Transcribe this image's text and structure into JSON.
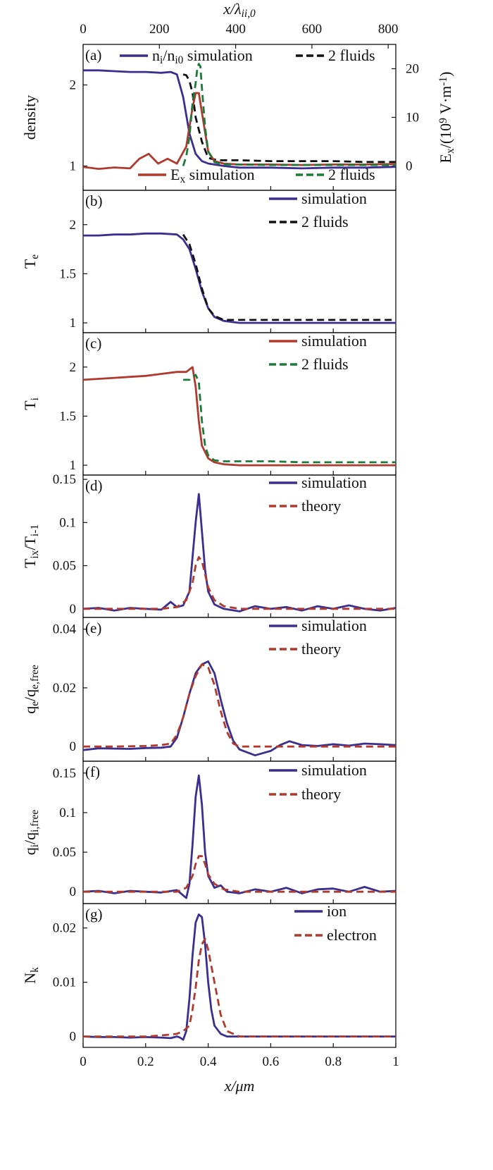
{
  "figure": {
    "top_axis_label": "x/λ_{ii,0}",
    "bottom_axis_label": "x/μm",
    "top_ticks": [
      "0",
      "200",
      "400",
      "600",
      "800"
    ],
    "bottom_ticks": [
      "0",
      "0.2",
      "0.4",
      "0.6",
      "0.8",
      "1"
    ]
  },
  "chart_data": [
    {
      "type": "line",
      "tag": "(a)",
      "ylabel": "density",
      "y2label": "E_x/(10^9 V·m^-1)",
      "ylim": [
        0.7,
        2.5
      ],
      "yticks": [
        1,
        2
      ],
      "y2lim": [
        -5,
        25
      ],
      "y2ticks": [
        0,
        10,
        20
      ],
      "xlim": [
        0,
        1
      ],
      "top_xlim": [
        0,
        820
      ],
      "legend": [
        {
          "label": "n_i/n_i0 simulation",
          "color": "#3a2f8f",
          "dash": false,
          "placement": "top-left"
        },
        {
          "label": "2 fluids",
          "color": "#111111",
          "dash": true,
          "placement": "top-right"
        },
        {
          "label": "E_x simulation",
          "color": "#b03a2e",
          "dash": false,
          "placement": "bottom-center"
        },
        {
          "label": "2 fluids",
          "color": "#1e7a3a",
          "dash": true,
          "placement": "bottom-right"
        }
      ],
      "series": [
        {
          "name": "n_i/n_i0 simulation",
          "axis": "left",
          "color": "#3a2f8f",
          "dash": false,
          "x": [
            0,
            0.05,
            0.1,
            0.15,
            0.2,
            0.25,
            0.28,
            0.3,
            0.32,
            0.34,
            0.36,
            0.38,
            0.4,
            0.45,
            0.5,
            0.6,
            0.7,
            0.8,
            0.9,
            1.0
          ],
          "y": [
            2.18,
            2.18,
            2.17,
            2.16,
            2.16,
            2.15,
            2.16,
            2.13,
            1.85,
            1.4,
            1.15,
            1.06,
            1.03,
            1.0,
            0.98,
            0.98,
            0.97,
            0.98,
            0.98,
            0.99
          ]
        },
        {
          "name": "2 fluids",
          "axis": "left",
          "color": "#111111",
          "dash": true,
          "x": [
            0.32,
            0.33,
            0.34,
            0.35,
            0.36,
            0.38,
            0.4,
            0.43,
            0.45,
            0.5,
            0.6,
            0.7,
            0.8,
            0.9,
            1.0
          ],
          "y": [
            2.13,
            2.12,
            2.05,
            1.9,
            1.6,
            1.3,
            1.1,
            1.07,
            1.07,
            1.07,
            1.06,
            1.06,
            1.06,
            1.05,
            1.05
          ]
        },
        {
          "name": "E_x simulation",
          "axis": "right",
          "color": "#b03a2e",
          "dash": false,
          "x": [
            0,
            0.05,
            0.1,
            0.15,
            0.18,
            0.21,
            0.24,
            0.27,
            0.3,
            0.33,
            0.35,
            0.36,
            0.37,
            0.38,
            0.4,
            0.42,
            0.45,
            0.5,
            0.6,
            0.7,
            0.8,
            0.9,
            1.0
          ],
          "y": [
            -0.2,
            -0.6,
            -0.3,
            -0.5,
            1.5,
            2.5,
            0.5,
            1.5,
            0.5,
            4,
            12,
            15,
            15,
            11,
            3,
            1,
            0.5,
            0.3,
            0.3,
            0.2,
            0.3,
            0.3,
            0.4
          ]
        },
        {
          "name": "2 fluids",
          "axis": "right",
          "color": "#1e7a3a",
          "dash": true,
          "x": [
            0.32,
            0.33,
            0.34,
            0.35,
            0.36,
            0.365,
            0.37,
            0.375,
            0.38,
            0.39,
            0.4,
            0.42,
            0.45,
            0.5,
            0.6,
            0.7,
            0.8,
            0.9,
            1.0
          ],
          "y": [
            0,
            2,
            6,
            13,
            17,
            20,
            21,
            20.5,
            16,
            8,
            3,
            0.8,
            0.3,
            0.3,
            0.2,
            0.2,
            0.2,
            0.2,
            0.2
          ]
        }
      ]
    },
    {
      "type": "line",
      "tag": "(b)",
      "ylabel": "T_e",
      "ylim": [
        0.9,
        2.35
      ],
      "yticks": [
        1,
        1.5,
        2
      ],
      "xlim": [
        0,
        1
      ],
      "legend": [
        {
          "label": "simulation",
          "color": "#3a2f8f",
          "dash": false
        },
        {
          "label": "2 fluids",
          "color": "#111111",
          "dash": true
        }
      ],
      "series": [
        {
          "name": "simulation",
          "color": "#3a2f8f",
          "dash": false,
          "x": [
            0,
            0.05,
            0.1,
            0.15,
            0.2,
            0.25,
            0.3,
            0.32,
            0.34,
            0.36,
            0.38,
            0.4,
            0.42,
            0.45,
            0.5,
            0.6,
            0.7,
            0.8,
            0.9,
            1.0
          ],
          "y": [
            1.89,
            1.89,
            1.9,
            1.9,
            1.91,
            1.91,
            1.9,
            1.85,
            1.75,
            1.55,
            1.32,
            1.15,
            1.06,
            1.02,
            1.0,
            1.0,
            1.0,
            1.0,
            1.0,
            1.0
          ]
        },
        {
          "name": "2 fluids",
          "color": "#111111",
          "dash": true,
          "x": [
            0.32,
            0.34,
            0.36,
            0.38,
            0.4,
            0.42,
            0.45,
            0.5,
            0.6,
            0.7,
            0.8,
            0.9,
            1.0
          ],
          "y": [
            1.9,
            1.8,
            1.6,
            1.35,
            1.15,
            1.07,
            1.03,
            1.03,
            1.03,
            1.03,
            1.03,
            1.03,
            1.03
          ]
        }
      ]
    },
    {
      "type": "line",
      "tag": "(c)",
      "ylabel": "T_i",
      "ylim": [
        0.9,
        2.35
      ],
      "yticks": [
        1,
        1.5,
        2
      ],
      "xlim": [
        0,
        1
      ],
      "legend": [
        {
          "label": "simulation",
          "color": "#b03a2e",
          "dash": false
        },
        {
          "label": "2 fluids",
          "color": "#1e7a3a",
          "dash": true
        }
      ],
      "series": [
        {
          "name": "simulation",
          "color": "#b03a2e",
          "dash": false,
          "x": [
            0,
            0.05,
            0.1,
            0.15,
            0.2,
            0.25,
            0.3,
            0.33,
            0.35,
            0.36,
            0.37,
            0.38,
            0.4,
            0.42,
            0.45,
            0.5,
            0.6,
            0.7,
            0.8,
            0.9,
            1.0
          ],
          "y": [
            1.87,
            1.88,
            1.89,
            1.9,
            1.91,
            1.93,
            1.95,
            1.95,
            2.0,
            1.8,
            1.45,
            1.2,
            1.07,
            1.03,
            1.01,
            1.0,
            1.0,
            1.0,
            1.0,
            1.0,
            1.0
          ]
        },
        {
          "name": "2 fluids",
          "color": "#1e7a3a",
          "dash": true,
          "x": [
            0.32,
            0.34,
            0.35,
            0.36,
            0.37,
            0.38,
            0.39,
            0.4,
            0.42,
            0.45,
            0.5,
            0.6,
            0.7,
            0.8,
            0.9,
            1.0
          ],
          "y": [
            1.87,
            1.87,
            1.9,
            1.92,
            1.85,
            1.45,
            1.2,
            1.1,
            1.05,
            1.04,
            1.04,
            1.04,
            1.03,
            1.03,
            1.03,
            1.03
          ]
        }
      ]
    },
    {
      "type": "line",
      "tag": "(d)",
      "ylabel": "T_ix/T_i-1",
      "ylim": [
        -0.01,
        0.155
      ],
      "yticks": [
        0,
        0.05,
        0.1,
        0.15
      ],
      "xlim": [
        0,
        1
      ],
      "legend": [
        {
          "label": "simulation",
          "color": "#3a2f8f",
          "dash": false
        },
        {
          "label": "theory",
          "color": "#b03a2e",
          "dash": true
        }
      ],
      "series": [
        {
          "name": "simulation",
          "color": "#3a2f8f",
          "dash": false,
          "x": [
            0,
            0.05,
            0.1,
            0.15,
            0.2,
            0.25,
            0.28,
            0.3,
            0.32,
            0.34,
            0.35,
            0.36,
            0.37,
            0.38,
            0.39,
            0.4,
            0.42,
            0.45,
            0.5,
            0.55,
            0.6,
            0.65,
            0.7,
            0.75,
            0.8,
            0.85,
            0.9,
            0.95,
            1.0
          ],
          "y": [
            0,
            0.001,
            -0.002,
            0.001,
            0,
            -0.001,
            0.008,
            0.002,
            0.004,
            0.02,
            0.06,
            0.1,
            0.133,
            0.09,
            0.045,
            0.02,
            0.005,
            0,
            -0.003,
            0.003,
            0,
            0.002,
            -0.002,
            0.003,
            0,
            0.004,
            0,
            -0.002,
            0.001
          ]
        },
        {
          "name": "theory",
          "color": "#b03a2e",
          "dash": true,
          "x": [
            0,
            0.1,
            0.2,
            0.25,
            0.3,
            0.33,
            0.35,
            0.36,
            0.37,
            0.38,
            0.39,
            0.4,
            0.42,
            0.45,
            0.5,
            0.6,
            0.7,
            0.8,
            0.9,
            1.0
          ],
          "y": [
            0,
            0,
            0,
            0,
            0.002,
            0.01,
            0.03,
            0.05,
            0.06,
            0.055,
            0.04,
            0.025,
            0.01,
            0.003,
            0,
            0,
            0,
            0,
            0,
            0
          ]
        }
      ]
    },
    {
      "type": "line",
      "tag": "(e)",
      "ylabel": "q_e/q_e,free",
      "ylim": [
        -0.005,
        0.044
      ],
      "yticks": [
        0,
        0.02,
        0.04
      ],
      "xlim": [
        0,
        1
      ],
      "legend": [
        {
          "label": "simulation",
          "color": "#3a2f8f",
          "dash": false
        },
        {
          "label": "theory",
          "color": "#b03a2e",
          "dash": true
        }
      ],
      "series": [
        {
          "name": "simulation",
          "color": "#3a2f8f",
          "dash": false,
          "x": [
            0,
            0.05,
            0.1,
            0.15,
            0.2,
            0.25,
            0.28,
            0.3,
            0.32,
            0.34,
            0.36,
            0.38,
            0.4,
            0.42,
            0.44,
            0.46,
            0.48,
            0.5,
            0.55,
            0.6,
            0.63,
            0.66,
            0.7,
            0.75,
            0.8,
            0.85,
            0.9,
            0.95,
            1.0
          ],
          "y": [
            -0.0012,
            -0.0006,
            -0.0007,
            -0.0008,
            -0.0005,
            -0.0004,
            0,
            0.003,
            0.01,
            0.018,
            0.025,
            0.028,
            0.029,
            0.025,
            0.016,
            0.008,
            0.002,
            -0.001,
            -0.003,
            -0.0015,
            0.0005,
            0.0018,
            0.0005,
            0.0002,
            0.0008,
            0.0003,
            0.001,
            0.0008,
            0.0005
          ]
        },
        {
          "name": "theory",
          "color": "#b03a2e",
          "dash": true,
          "x": [
            0,
            0.1,
            0.2,
            0.25,
            0.28,
            0.3,
            0.32,
            0.34,
            0.36,
            0.38,
            0.4,
            0.42,
            0.44,
            0.46,
            0.48,
            0.5,
            0.55,
            0.6,
            0.7,
            0.8,
            0.9,
            1.0
          ],
          "y": [
            0,
            0,
            0.0002,
            0.0005,
            0.001,
            0.004,
            0.01,
            0.018,
            0.024,
            0.028,
            0.027,
            0.021,
            0.012,
            0.005,
            0.001,
            0,
            0,
            0,
            0,
            0,
            0,
            0
          ]
        }
      ]
    },
    {
      "type": "line",
      "tag": "(f)",
      "ylabel": "q_i/q_i,free",
      "ylim": [
        -0.015,
        0.165
      ],
      "yticks": [
        0,
        0.05,
        0.1,
        0.15
      ],
      "xlim": [
        0,
        1
      ],
      "legend": [
        {
          "label": "simulation",
          "color": "#3a2f8f",
          "dash": false
        },
        {
          "label": "theory",
          "color": "#b03a2e",
          "dash": true
        }
      ],
      "series": [
        {
          "name": "simulation",
          "color": "#3a2f8f",
          "dash": false,
          "x": [
            0,
            0.05,
            0.1,
            0.15,
            0.2,
            0.25,
            0.3,
            0.33,
            0.34,
            0.35,
            0.36,
            0.37,
            0.38,
            0.39,
            0.4,
            0.42,
            0.44,
            0.46,
            0.5,
            0.55,
            0.6,
            0.65,
            0.7,
            0.75,
            0.8,
            0.85,
            0.9,
            0.95,
            1.0
          ],
          "y": [
            0,
            0.001,
            -0.002,
            0.001,
            0,
            -0.001,
            0.002,
            -0.008,
            0.01,
            0.06,
            0.12,
            0.147,
            0.11,
            0.05,
            0.02,
            0.005,
            0.008,
            0,
            -0.002,
            0.003,
            0,
            0.005,
            -0.002,
            0.003,
            0.004,
            0,
            0.006,
            0,
            0.001
          ]
        },
        {
          "name": "theory",
          "color": "#b03a2e",
          "dash": true,
          "x": [
            0,
            0.1,
            0.2,
            0.3,
            0.33,
            0.35,
            0.36,
            0.37,
            0.38,
            0.39,
            0.4,
            0.42,
            0.45,
            0.5,
            0.6,
            0.7,
            0.8,
            0.9,
            1.0
          ],
          "y": [
            0,
            0,
            0,
            0,
            0.005,
            0.02,
            0.035,
            0.045,
            0.045,
            0.035,
            0.022,
            0.01,
            0.003,
            0,
            0,
            0,
            0,
            0,
            0
          ]
        }
      ]
    },
    {
      "type": "line",
      "tag": "(g)",
      "ylabel": "N_k",
      "ylim": [
        -0.002,
        0.0245
      ],
      "yticks": [
        0,
        0.01,
        0.02
      ],
      "xlim": [
        0,
        1
      ],
      "legend": [
        {
          "label": "ion",
          "color": "#3a2f8f",
          "dash": false
        },
        {
          "label": "electron",
          "color": "#b03a2e",
          "dash": true
        }
      ],
      "series": [
        {
          "name": "ion",
          "color": "#3a2f8f",
          "dash": false,
          "x": [
            0,
            0.05,
            0.1,
            0.15,
            0.2,
            0.25,
            0.28,
            0.3,
            0.31,
            0.32,
            0.33,
            0.34,
            0.35,
            0.36,
            0.37,
            0.38,
            0.39,
            0.4,
            0.41,
            0.42,
            0.44,
            0.46,
            0.5,
            0.6,
            0.7,
            0.8,
            0.9,
            1.0
          ],
          "y": [
            0,
            -0.0001,
            -0.0001,
            -0.0002,
            -0.0001,
            -0.0002,
            -0.0003,
            0,
            -0.0002,
            -0.0006,
            0.001,
            0.007,
            0.015,
            0.021,
            0.0225,
            0.022,
            0.017,
            0.01,
            0.005,
            0.002,
            0.0005,
            0,
            0,
            0,
            0,
            0,
            0,
            0
          ]
        },
        {
          "name": "electron",
          "color": "#b03a2e",
          "dash": true,
          "x": [
            0,
            0.1,
            0.2,
            0.25,
            0.3,
            0.32,
            0.34,
            0.35,
            0.36,
            0.37,
            0.38,
            0.39,
            0.4,
            0.42,
            0.44,
            0.46,
            0.5,
            0.6,
            0.7,
            0.8,
            0.9,
            1.0
          ],
          "y": [
            0,
            0,
            0,
            0.0002,
            0.0005,
            0.001,
            0.002,
            0.005,
            0.009,
            0.014,
            0.017,
            0.018,
            0.016,
            0.01,
            0.004,
            0.001,
            0,
            0,
            0,
            0,
            0,
            0
          ]
        }
      ]
    }
  ]
}
